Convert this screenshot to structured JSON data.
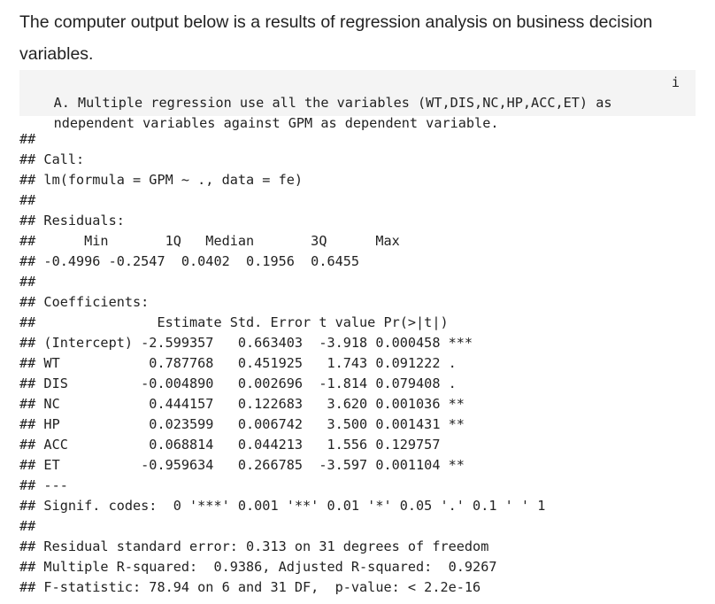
{
  "intro": {
    "text": "The computer output below is a results of regression analysis on business decision variables."
  },
  "question": {
    "line1": "A. Multiple regression use all the variables (WT,DIS,NC,HP,ACC,ET) as",
    "line1_tail": "i",
    "line2": "ndependent variables against GPM as dependent variable."
  },
  "output_lines": [
    "##",
    "## Call:",
    "## lm(formula = GPM ~ ., data = fe)",
    "##",
    "## Residuals:",
    "##      Min       1Q   Median       3Q      Max",
    "## -0.4996 -0.2547  0.0402  0.1956  0.6455",
    "##",
    "## Coefficients:",
    "##               Estimate Std. Error t value Pr(>|t|)",
    "## (Intercept) -2.599357   0.663403  -3.918 0.000458 ***",
    "## WT           0.787768   0.451925   1.743 0.091222 .",
    "## DIS         -0.004890   0.002696  -1.814 0.079408 .",
    "## NC           0.444157   0.122683   3.620 0.001036 **",
    "## HP           0.023599   0.006742   3.500 0.001431 **",
    "## ACC          0.068814   0.044213   1.556 0.129757",
    "## ET          -0.959634   0.266785  -3.597 0.001104 **",
    "## ---",
    "## Signif. codes:  0 '***' 0.001 '**' 0.01 '*' 0.05 '.' 0.1 ' ' 1",
    "##",
    "## Residual standard error: 0.313 on 31 degrees of freedom",
    "## Multiple R-squared:  0.9386, Adjusted R-squared:  0.9267",
    "## F-statistic: 78.94 on 6 and 31 DF,  p-value: < 2.2e-16"
  ]
}
